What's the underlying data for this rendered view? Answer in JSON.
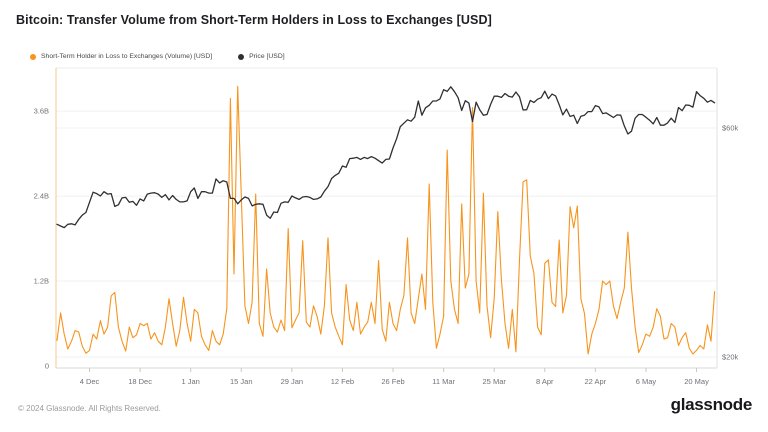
{
  "title": "Bitcoin: Transfer Volume from Short-Term Holders in Loss to Exchanges [USD]",
  "legend": [
    {
      "label": "Short-Term Holder in Loss to Exchanges (Volume) [USD]",
      "color": "#f7941d"
    },
    {
      "label": "Price [USD]",
      "color": "#303034"
    }
  ],
  "footer": {
    "copyright": "© 2024 Glassnode. All Rights Reserved.",
    "brand": "glassnode"
  },
  "chart_data": {
    "type": "line",
    "title": "Bitcoin: Transfer Volume from Short-Term Holders in Loss to Exchanges [USD]",
    "x_start_date": "2023-11-25",
    "x_end_date": "2024-05-25",
    "x_tick_labels": [
      "4 Dec",
      "18 Dec",
      "1 Jan",
      "15 Jan",
      "29 Jan",
      "12 Feb",
      "26 Feb",
      "11 Mar",
      "25 Mar",
      "8 Apr",
      "22 Apr",
      "6 May",
      "20 May"
    ],
    "x_tick_day_index": [
      9,
      23,
      37,
      51,
      65,
      79,
      93,
      107,
      121,
      135,
      149,
      163,
      177
    ],
    "left_axis": {
      "title": "Transfer volume (USD)",
      "tick_labels": [
        "0",
        "1.2B",
        "2.4B",
        "3.6B"
      ],
      "tick_values_bill億": null,
      "tick_values_B": [
        0,
        1.2,
        2.4,
        3.6
      ],
      "range_B": [
        0,
        4.2
      ],
      "scale": "linear"
    },
    "right_axis": {
      "title": "Price (USD)",
      "tick_labels": [
        "$20k",
        "$60k"
      ],
      "tick_values_k": [
        20,
        60
      ],
      "scale": "log"
    },
    "grid": "horizontal-only",
    "legend_position": "top-left",
    "series": [
      {
        "name": "Short-Term Holder in Loss to Exchanges (Volume) [USD]",
        "color": "#f7941d",
        "axis": "left",
        "unit": "billion USD",
        "values": [
          0.36,
          0.75,
          0.45,
          0.24,
          0.35,
          0.5,
          0.48,
          0.28,
          0.18,
          0.22,
          0.45,
          0.38,
          0.64,
          0.45,
          0.55,
          0.99,
          1.04,
          0.55,
          0.35,
          0.21,
          0.55,
          0.4,
          0.44,
          0.6,
          0.57,
          0.6,
          0.38,
          0.47,
          0.35,
          0.3,
          0.55,
          0.95,
          0.6,
          0.28,
          0.5,
          0.97,
          0.6,
          0.35,
          0.8,
          0.75,
          0.42,
          0.3,
          0.22,
          0.5,
          0.35,
          0.3,
          0.45,
          0.81,
          3.78,
          1.3,
          3.95,
          2.4,
          0.85,
          0.6,
          0.9,
          2.43,
          0.6,
          0.42,
          1.37,
          0.75,
          0.55,
          0.48,
          0.65,
          0.5,
          1.94,
          0.54,
          0.65,
          0.75,
          1.77,
          0.62,
          0.55,
          0.85,
          0.7,
          0.45,
          0.85,
          1.81,
          0.75,
          0.55,
          0.42,
          0.3,
          1.15,
          0.65,
          0.5,
          0.9,
          0.45,
          0.55,
          0.62,
          0.9,
          0.6,
          1.49,
          0.52,
          0.35,
          0.9,
          0.6,
          0.5,
          0.8,
          1.0,
          1.81,
          0.75,
          0.6,
          0.95,
          1.3,
          0.8,
          2.57,
          0.9,
          0.25,
          0.45,
          0.7,
          3.05,
          1.2,
          0.8,
          0.6,
          2.29,
          1.1,
          1.3,
          3.65,
          1.2,
          0.75,
          2.44,
          0.85,
          0.4,
          0.95,
          2.18,
          1.22,
          0.6,
          0.25,
          0.8,
          0.2,
          1.5,
          2.6,
          2.63,
          1.55,
          1.31,
          0.55,
          0.44,
          1.45,
          1.5,
          0.9,
          0.84,
          1.78,
          0.75,
          1.0,
          2.25,
          1.95,
          2.26,
          0.95,
          0.74,
          0.17,
          0.45,
          0.6,
          0.8,
          1.2,
          1.15,
          1.2,
          0.85,
          0.67,
          0.9,
          1.1,
          1.89,
          1.1,
          0.55,
          0.19,
          0.3,
          0.45,
          0.42,
          0.55,
          0.81,
          0.7,
          0.38,
          0.4,
          0.6,
          0.55,
          0.29,
          0.4,
          0.47,
          0.25,
          0.17,
          0.22,
          0.29,
          0.24,
          0.58,
          0.35,
          1.05
        ]
      },
      {
        "name": "Price [USD]",
        "color": "#303034",
        "axis": "right",
        "unit": "thousand USD",
        "values": [
          37.8,
          37.5,
          37.2,
          37.8,
          37.9,
          37.7,
          38.7,
          39.5,
          40.0,
          42.0,
          44.1,
          43.8,
          43.3,
          44.2,
          43.7,
          43.8,
          41.2,
          41.5,
          42.9,
          43.0,
          42.0,
          42.2,
          41.4,
          42.7,
          42.3,
          43.7,
          43.9,
          44.0,
          43.7,
          43.0,
          43.6,
          42.5,
          43.4,
          42.6,
          42.1,
          42.1,
          42.3,
          44.2,
          45.0,
          42.8,
          44.2,
          44.2,
          43.9,
          43.9,
          47.0,
          46.1,
          46.6,
          46.3,
          42.8,
          42.8,
          41.7,
          42.5,
          43.1,
          42.8,
          41.3,
          41.6,
          41.7,
          41.6,
          39.5,
          38.9,
          40.1,
          40.0,
          41.8,
          42.1,
          42.0,
          43.3,
          42.9,
          42.6,
          43.1,
          43.2,
          43.0,
          42.6,
          42.7,
          43.1,
          44.3,
          45.3,
          47.1,
          47.8,
          48.3,
          50.0,
          49.7,
          51.8,
          51.9,
          52.1,
          51.6,
          52.1,
          51.8,
          52.3,
          51.9,
          51.3,
          50.7,
          51.6,
          51.7,
          54.5,
          57.0,
          60.4,
          61.4,
          62.4,
          62.0,
          63.2,
          68.3,
          63.8,
          66.1,
          66.9,
          68.3,
          68.3,
          69.0,
          72.1,
          71.5,
          73.1,
          71.4,
          69.4,
          65.3,
          68.4,
          67.6,
          61.9,
          67.9,
          65.5,
          63.8,
          64.0,
          67.2,
          69.9,
          69.9,
          69.5,
          70.8,
          69.9,
          69.6,
          71.3,
          69.7,
          65.4,
          65.5,
          68.5,
          67.8,
          68.9,
          69.4,
          71.6,
          69.1,
          70.6,
          70.0,
          67.1,
          63.9,
          65.7,
          63.4,
          63.8,
          61.3,
          63.5,
          63.8,
          64.9,
          64.9,
          66.8,
          66.4,
          64.3,
          64.5,
          63.8,
          63.1,
          63.9,
          63.8,
          60.6,
          58.3,
          59.1,
          62.9,
          64.0,
          64.0,
          63.2,
          62.3,
          61.2,
          63.1,
          60.8,
          60.8,
          61.5,
          62.9,
          61.6,
          66.2,
          65.2,
          67.0,
          66.9,
          66.3,
          71.4,
          70.1,
          69.2,
          67.9,
          68.5,
          67.7
        ]
      }
    ]
  }
}
